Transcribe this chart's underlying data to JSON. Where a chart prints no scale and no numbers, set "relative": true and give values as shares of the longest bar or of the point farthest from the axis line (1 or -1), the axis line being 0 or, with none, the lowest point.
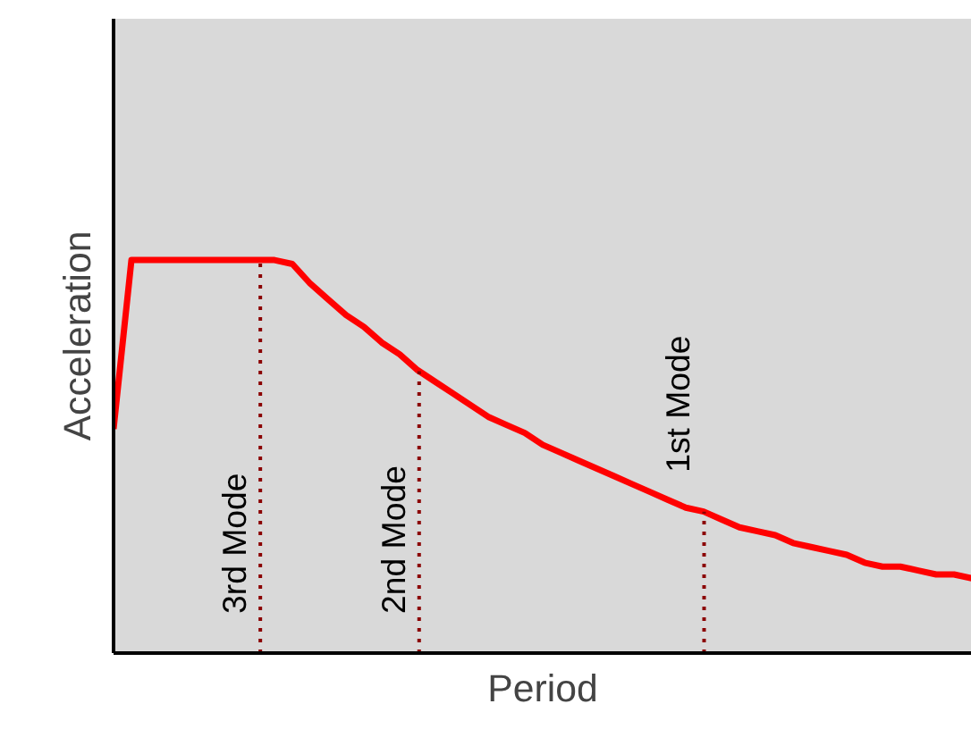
{
  "chart_data": {
    "type": "line",
    "relative": true,
    "xlabel": "Period",
    "ylabel": "Acceleration",
    "categories": [
      null,
      null,
      null,
      null,
      null,
      null,
      null,
      null,
      null,
      null,
      null,
      null,
      null,
      null,
      null,
      null,
      null,
      null,
      null,
      null,
      null,
      null,
      null,
      null,
      null,
      null,
      null,
      null,
      null,
      null,
      null,
      null,
      null,
      null,
      null,
      null,
      null,
      null,
      null,
      null,
      null,
      null,
      null,
      null,
      null,
      null,
      null,
      null,
      null
    ],
    "series": [
      {
        "color": "#ff0000",
        "values": [
          0.57,
          1.0,
          1.0,
          1.0,
          1.0,
          1.0,
          1.0,
          1.0,
          1.0,
          1.0,
          0.99,
          0.94,
          0.9,
          0.86,
          0.83,
          0.79,
          0.76,
          0.72,
          0.69,
          0.66,
          0.63,
          0.6,
          0.58,
          0.56,
          0.53,
          0.51,
          0.49,
          0.47,
          0.45,
          0.43,
          0.41,
          0.39,
          0.37,
          0.36,
          0.34,
          0.32,
          0.31,
          0.3,
          0.28,
          0.27,
          0.26,
          0.25,
          0.23,
          0.22,
          0.22,
          0.21,
          0.2,
          0.2,
          0.19
        ]
      }
    ],
    "annotations": [
      "3rd Mode",
      "2nd Mode",
      "1st Mode"
    ]
  }
}
